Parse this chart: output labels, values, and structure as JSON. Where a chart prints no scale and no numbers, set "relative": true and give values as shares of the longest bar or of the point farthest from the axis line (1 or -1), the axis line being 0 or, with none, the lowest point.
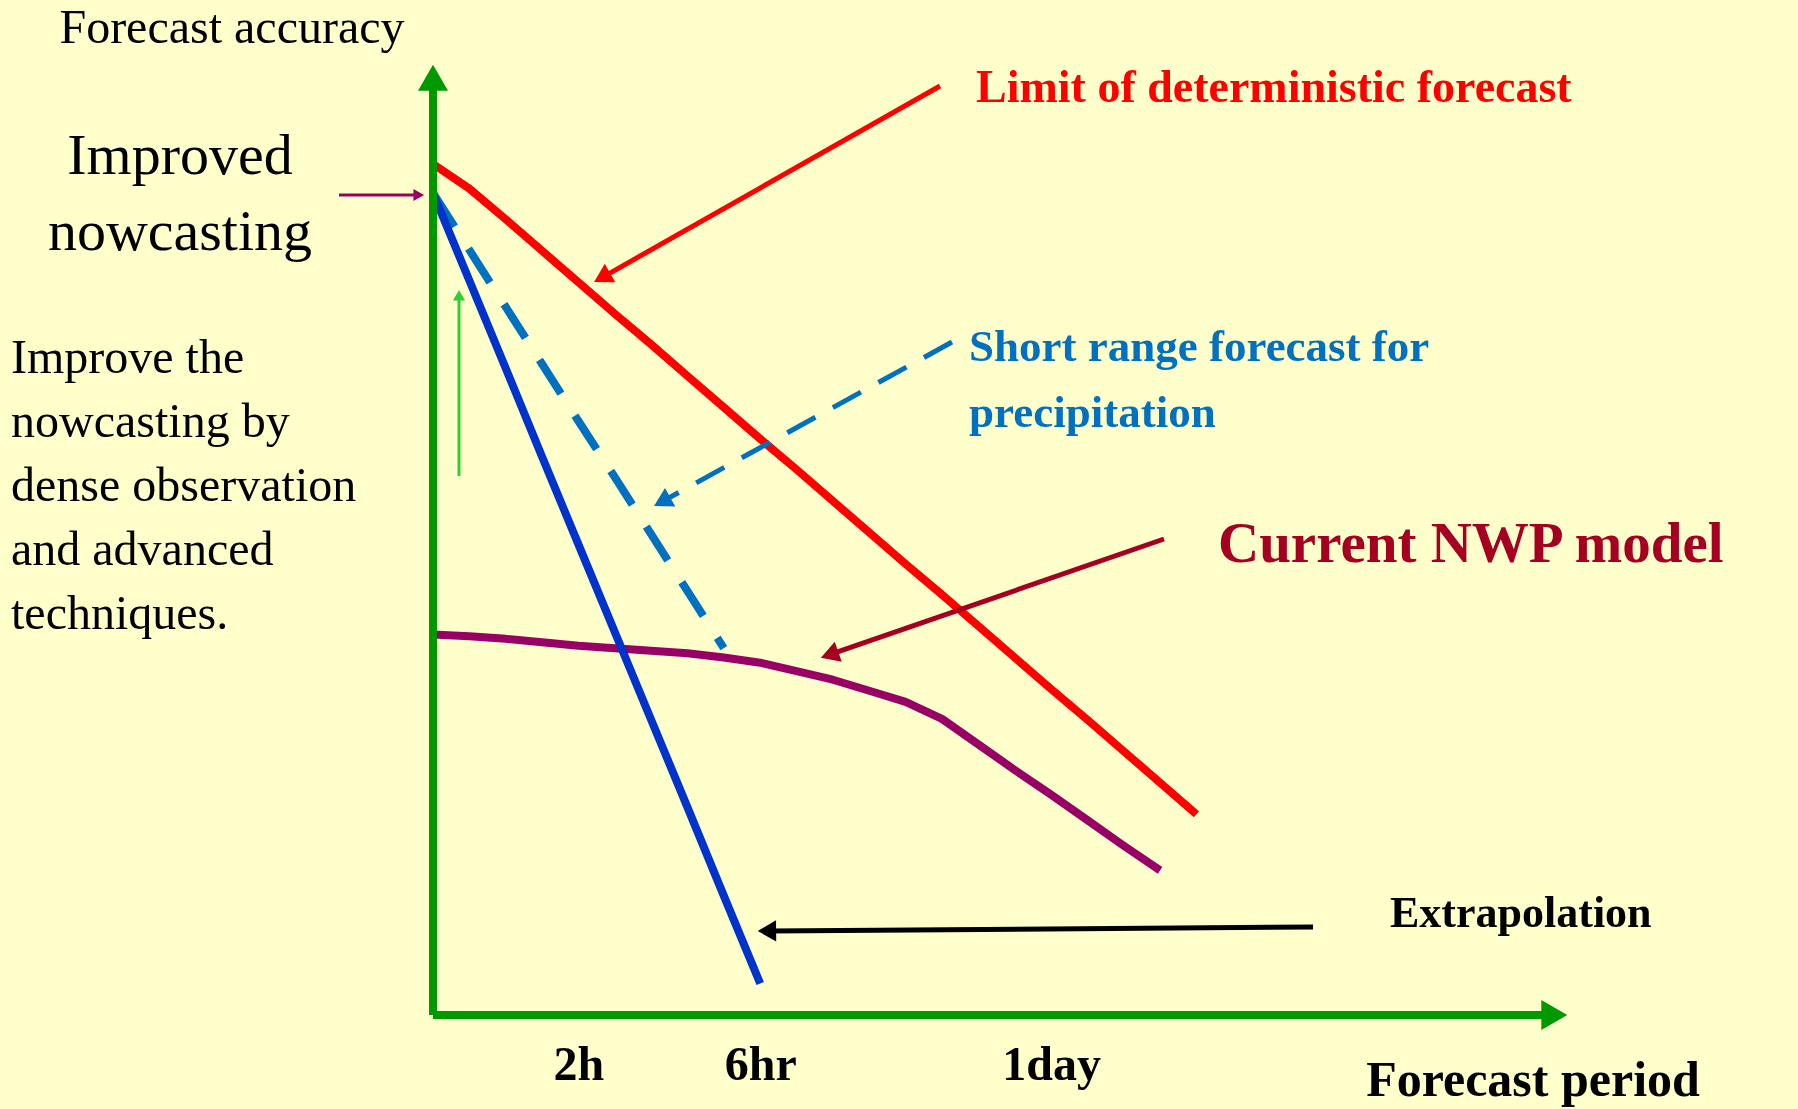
{
  "chart_data": {
    "type": "line",
    "relative": true,
    "ylabel": "Forecast accuracy",
    "xlabel": "Forecast period",
    "categories": [
      null,
      null,
      null,
      null,
      "2h",
      null,
      null,
      null,
      null,
      "6hr",
      null,
      null,
      null,
      null,
      null,
      null,
      null,
      "1day",
      null,
      null,
      null,
      null,
      null,
      null,
      null,
      null,
      null,
      null,
      null,
      null,
      null,
      null
    ],
    "grid": false,
    "marker": "none",
    "series": [
      {
        "name": "Current NWP model",
        "color": "#990066",
        "values": [
          0.447,
          0.445,
          0.442,
          0.438,
          0.434,
          0.431,
          0.428,
          0.425,
          0.42,
          0.414,
          0.404,
          0.394,
          0.381,
          0.368,
          0.348,
          0.318,
          0.288,
          0.259,
          0.229,
          0.199,
          0.17,
          null,
          null,
          null,
          null,
          null,
          null,
          null,
          null,
          null,
          null,
          null
        ]
      },
      {
        "name": "Limit of deterministic forecast",
        "color": "#ff0000",
        "values": [
          1.0,
          0.971,
          0.935,
          0.898,
          0.861,
          0.824,
          0.788,
          0.751,
          0.714,
          0.677,
          0.641,
          0.604,
          0.567,
          0.53,
          0.494,
          0.457,
          0.42,
          0.383,
          0.347,
          0.31,
          0.273,
          0.236,
          null,
          null,
          null,
          null,
          null,
          null,
          null,
          null,
          null,
          null
        ]
      },
      {
        "name": "Short range forecast for precipitation",
        "color": "#0070c0",
        "line_style": "dashed",
        "values": [
          0.966,
          0.899,
          0.832,
          0.765,
          0.698,
          0.632,
          0.565,
          0.498,
          0.431,
          null,
          null,
          null,
          null,
          null,
          null,
          null,
          null,
          null,
          null,
          null,
          null,
          null,
          null,
          null,
          null,
          null,
          null,
          null,
          null,
          null,
          null,
          null
        ]
      },
      {
        "color": "#0033cc",
        "values": [
          0.966,
          0.863,
          0.76,
          0.656,
          0.553,
          0.45,
          0.347,
          0.244,
          0.14,
          0.037,
          null,
          null,
          null,
          null,
          null,
          null,
          null,
          null,
          null,
          null,
          null,
          null,
          null,
          null,
          null,
          null,
          null,
          null,
          null,
          null,
          null,
          null
        ]
      }
    ],
    "annotations": [
      "Improved nowcasting",
      "Improve the nowcasting by dense observation and advanced techniques.",
      "Extrapolation"
    ]
  }
}
